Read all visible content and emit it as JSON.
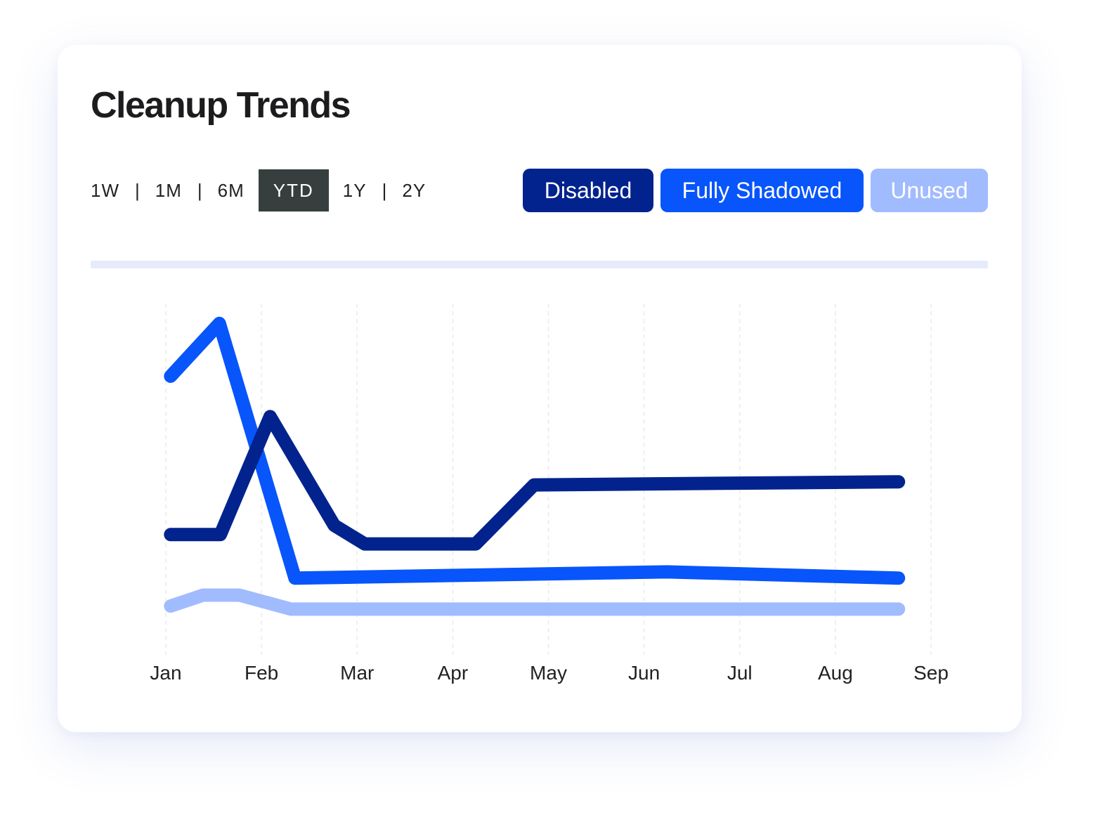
{
  "title": "Cleanup Trends",
  "ranges": [
    {
      "label": "1W",
      "active": false
    },
    {
      "label": "1M",
      "active": false
    },
    {
      "label": "6M",
      "active": false
    },
    {
      "label": "YTD",
      "active": true
    },
    {
      "label": "1Y",
      "active": false
    },
    {
      "label": "2Y",
      "active": false
    }
  ],
  "legend": [
    {
      "label": "Disabled",
      "color": "#02238d"
    },
    {
      "label": "Fully Shadowed",
      "color": "#0755fb"
    },
    {
      "label": "Unused",
      "color": "#a1bbff"
    }
  ],
  "chart_data": {
    "type": "line",
    "x_axis": {
      "type": "month",
      "tick_labels": [
        "Jan",
        "Feb",
        "Mar",
        "Apr",
        "May",
        "Jun",
        "Jul",
        "Aug",
        "Sep"
      ],
      "range": [
        1,
        9
      ]
    },
    "y_axis": {
      "visible": false,
      "range": [
        0,
        100
      ]
    },
    "grid": {
      "vertical": true,
      "horizontal": false,
      "style": "dashed"
    },
    "legend_position": "top-right",
    "series": [
      {
        "name": "Disabled",
        "color": "#02238d",
        "points": [
          [
            1.05,
            29
          ],
          [
            1.57,
            29
          ],
          [
            2.09,
            67
          ],
          [
            2.76,
            32
          ],
          [
            3.08,
            26
          ],
          [
            4.24,
            26
          ],
          [
            4.85,
            45
          ],
          [
            8.66,
            46
          ]
        ]
      },
      {
        "name": "Fully Shadowed",
        "color": "#0755fb",
        "points": [
          [
            1.05,
            80
          ],
          [
            1.56,
            97
          ],
          [
            2.35,
            15
          ],
          [
            6.24,
            17
          ],
          [
            8.66,
            15
          ]
        ]
      },
      {
        "name": "Unused",
        "color": "#a1bbff",
        "points": [
          [
            1.05,
            6
          ],
          [
            1.39,
            9.5
          ],
          [
            1.77,
            9.5
          ],
          [
            2.31,
            5
          ],
          [
            8.66,
            5
          ]
        ]
      }
    ]
  }
}
